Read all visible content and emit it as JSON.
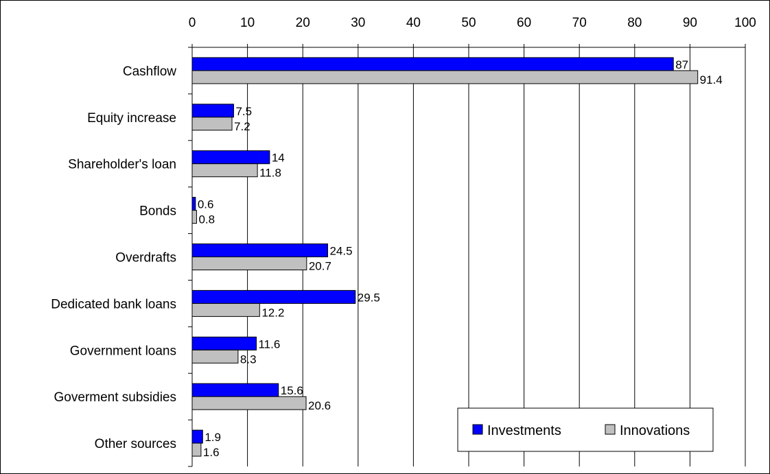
{
  "chart_data": {
    "type": "bar",
    "orientation": "horizontal",
    "categories": [
      "Cashflow",
      "Equity increase",
      "Shareholder's loan",
      "Bonds",
      "Overdrafts",
      "Dedicated bank loans",
      "Government loans",
      "Goverment subsidies",
      "Other sources"
    ],
    "series": [
      {
        "name": "Investments",
        "color": "#0000ff",
        "values": [
          87,
          7.5,
          14,
          0.6,
          24.5,
          29.5,
          11.6,
          15.6,
          1.9
        ],
        "labels": [
          "87",
          "7.5",
          "14",
          "0.6",
          "24.5",
          "29.5",
          "11.6",
          "15.6",
          "1.9"
        ]
      },
      {
        "name": "Innovations",
        "color": "#c0c0c0",
        "values": [
          91.4,
          7.2,
          11.8,
          0.8,
          20.7,
          12.2,
          8.3,
          20.6,
          1.6
        ],
        "labels": [
          "91.4",
          "7.2",
          "11.8",
          "0.8",
          "20.7",
          "12.2",
          "8.3",
          "20.6",
          "1.6"
        ]
      }
    ],
    "xlim": [
      0,
      100
    ],
    "xticks": [
      "0",
      "10",
      "20",
      "30",
      "40",
      "50",
      "60",
      "70",
      "80",
      "90",
      "100"
    ],
    "x_axis_position": "top",
    "grid": true,
    "legend_position": "bottom-right",
    "title": "",
    "xlabel": "",
    "ylabel": ""
  }
}
